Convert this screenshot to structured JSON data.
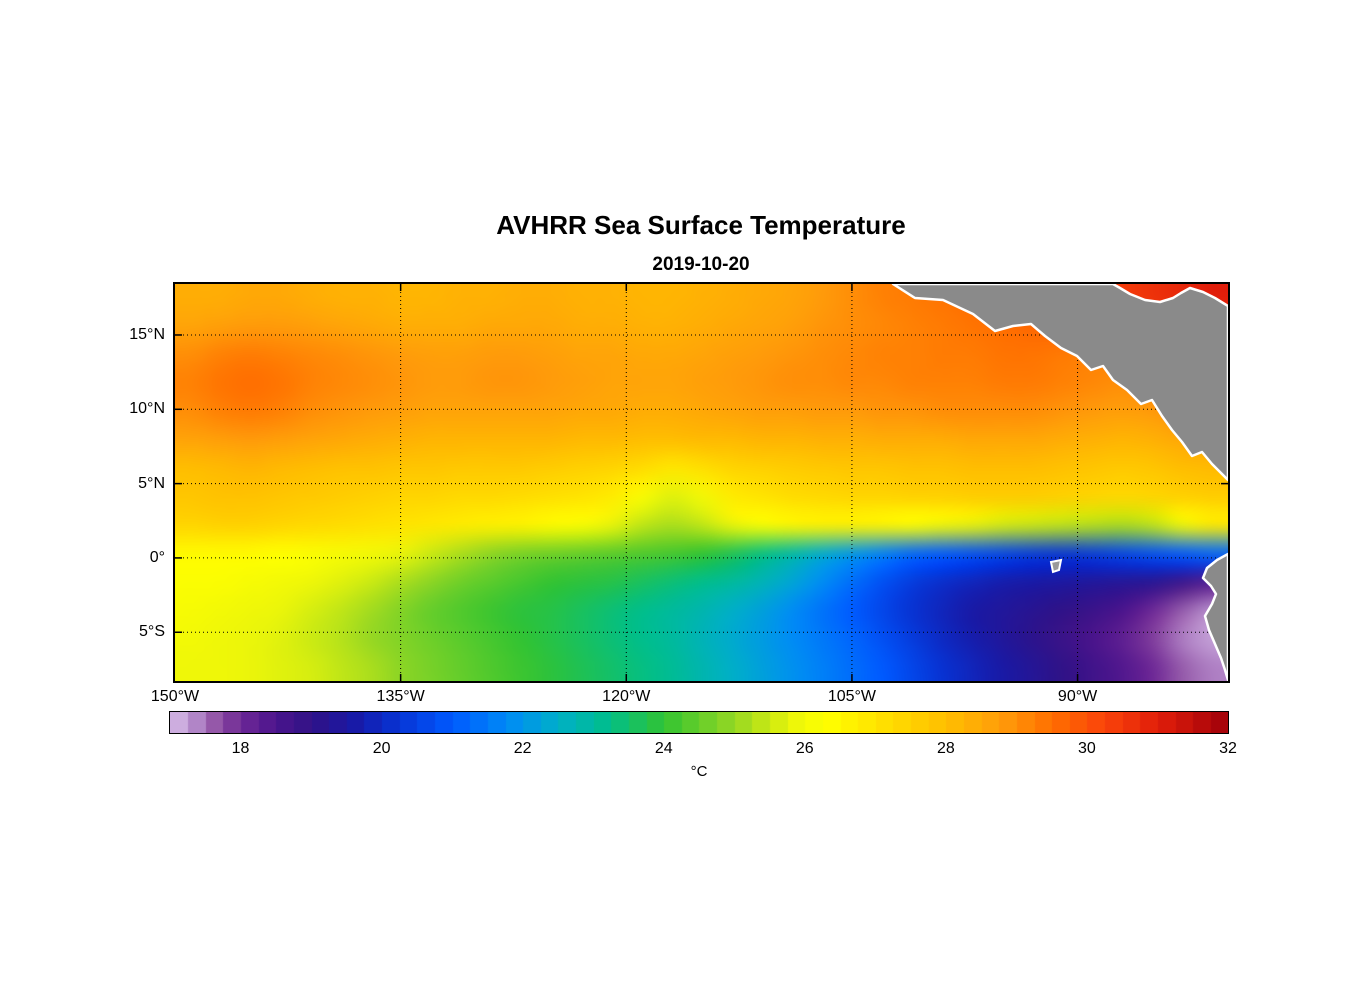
{
  "title": "AVHRR Sea Surface Temperature",
  "subtitle": "2019-10-20",
  "colorbar": {
    "label": "°C",
    "min": 17,
    "max": 32,
    "segments": 60,
    "ticks": [
      {
        "label": "18",
        "value": 18
      },
      {
        "label": "20",
        "value": 20
      },
      {
        "label": "22",
        "value": 22
      },
      {
        "label": "24",
        "value": 24
      },
      {
        "label": "26",
        "value": 26
      },
      {
        "label": "28",
        "value": 28
      },
      {
        "label": "30",
        "value": 30
      },
      {
        "label": "32",
        "value": 32
      }
    ]
  },
  "axes": {
    "lon_range": [
      -150,
      -80
    ],
    "lat_range": [
      -8.28,
      18.43
    ],
    "x_ticks": [
      {
        "label": "150°W",
        "lon": -150
      },
      {
        "label": "135°W",
        "lon": -135
      },
      {
        "label": "120°W",
        "lon": -120
      },
      {
        "label": "105°W",
        "lon": -105
      },
      {
        "label": "90°W",
        "lon": -90
      }
    ],
    "y_ticks": [
      {
        "label": "15°N",
        "lat": 15
      },
      {
        "label": "10°N",
        "lat": 10
      },
      {
        "label": "5°N",
        "lat": 5
      },
      {
        "label": "0°",
        "lat": 0
      },
      {
        "label": "5°S",
        "lat": -5
      }
    ]
  },
  "chart_data": {
    "type": "heatmap",
    "title": "AVHRR Sea Surface Temperature",
    "date": "2019-10-20",
    "units": "°C",
    "land_color": "#8A8A8A",
    "coast_color": "#ffffff",
    "x_lon": [
      -149,
      -147,
      -145,
      -143,
      -141,
      -139,
      -137,
      -135,
      -133,
      -131,
      -129,
      -127,
      -125,
      -123,
      -121,
      -119,
      -117,
      -115,
      -113,
      -111,
      -109,
      -107,
      -105,
      -103,
      -101,
      -99,
      -97,
      -95,
      -93,
      -91,
      -89,
      -87,
      -85,
      -83,
      -81
    ],
    "y_lat": [
      17.5,
      15.5,
      13.5,
      11.5,
      9.5,
      7.5,
      5.5,
      3.5,
      1.5,
      -0.5,
      -2.5,
      -4.5,
      -6.5,
      -8.5
    ],
    "values": [
      [
        28.4,
        28.4,
        28.5,
        28.5,
        28.4,
        28.3,
        28.3,
        28.2,
        28.2,
        28.3,
        28.3,
        28.4,
        28.4,
        28.3,
        28.3,
        28.2,
        28.2,
        28.3,
        28.4,
        28.5,
        28.6,
        28.8,
        29.0,
        29.2,
        29.3,
        29.4,
        29.5,
        29.6,
        29.8,
        30.0,
        30.2,
        30.4,
        30.6,
        30.8,
        31.0
      ],
      [
        28.6,
        28.7,
        28.8,
        28.8,
        28.7,
        28.6,
        28.5,
        28.4,
        28.4,
        28.4,
        28.5,
        28.5,
        28.5,
        28.4,
        28.4,
        28.3,
        28.3,
        28.4,
        28.5,
        28.6,
        28.7,
        28.9,
        29.0,
        29.1,
        29.2,
        29.3,
        29.4,
        29.5,
        29.6,
        29.7,
        29.8,
        30.0,
        30.2,
        30.4,
        30.5
      ],
      [
        29.0,
        29.2,
        29.3,
        29.2,
        29.1,
        29.0,
        28.9,
        28.8,
        28.7,
        28.7,
        28.8,
        28.8,
        28.7,
        28.6,
        28.6,
        28.5,
        28.5,
        28.6,
        28.7,
        28.8,
        28.9,
        29.0,
        29.1,
        29.2,
        29.2,
        29.3,
        29.3,
        29.4,
        29.4,
        29.3,
        29.2,
        29.3,
        29.5,
        29.6,
        29.7
      ],
      [
        29.2,
        29.4,
        29.5,
        29.4,
        29.2,
        29.1,
        29.0,
        28.9,
        28.8,
        28.8,
        28.9,
        28.9,
        28.8,
        28.7,
        28.6,
        28.6,
        28.6,
        28.7,
        28.8,
        28.9,
        29.0,
        29.0,
        29.1,
        29.1,
        29.2,
        29.2,
        29.2,
        29.3,
        29.3,
        29.2,
        29.1,
        29.0,
        29.2,
        29.4,
        29.5
      ],
      [
        29.0,
        29.2,
        29.3,
        29.2,
        29.0,
        28.9,
        28.8,
        28.7,
        28.6,
        28.6,
        28.6,
        28.6,
        28.6,
        28.5,
        28.5,
        28.4,
        28.4,
        28.5,
        28.6,
        28.7,
        28.7,
        28.8,
        28.8,
        28.9,
        28.9,
        29.0,
        29.0,
        29.0,
        29.0,
        28.9,
        28.8,
        28.7,
        28.8,
        29.0,
        29.1
      ],
      [
        28.6,
        28.7,
        28.8,
        28.7,
        28.6,
        28.5,
        28.4,
        28.3,
        28.2,
        28.2,
        28.2,
        28.2,
        28.2,
        28.1,
        28.1,
        28.0,
        28.0,
        28.1,
        28.1,
        28.2,
        28.2,
        28.3,
        28.3,
        28.4,
        28.4,
        28.4,
        28.5,
        28.5,
        28.5,
        28.4,
        28.3,
        28.2,
        28.3,
        28.5,
        28.6
      ],
      [
        28.0,
        28.1,
        28.2,
        28.1,
        28.0,
        27.9,
        27.9,
        27.8,
        27.8,
        27.7,
        27.7,
        27.7,
        27.6,
        27.5,
        27.4,
        27.2,
        26.9,
        27.1,
        27.4,
        27.5,
        27.6,
        27.7,
        27.8,
        27.8,
        27.9,
        27.9,
        28.0,
        28.0,
        28.0,
        27.9,
        27.8,
        27.7,
        27.8,
        28.0,
        28.1
      ],
      [
        27.8,
        27.9,
        27.9,
        27.8,
        27.7,
        27.6,
        27.5,
        27.4,
        27.4,
        27.3,
        27.3,
        27.2,
        27.1,
        27.0,
        26.8,
        26.2,
        25.7,
        26.0,
        26.8,
        27.0,
        27.2,
        27.3,
        27.4,
        27.4,
        27.5,
        27.5,
        27.6,
        27.6,
        27.6,
        27.5,
        27.4,
        27.3,
        27.4,
        27.5,
        27.6
      ],
      [
        27.4,
        27.5,
        27.5,
        27.4,
        27.3,
        27.2,
        27.1,
        27.0,
        26.9,
        26.8,
        26.7,
        26.6,
        26.4,
        26.2,
        25.8,
        25.4,
        25.2,
        25.4,
        25.8,
        26.2,
        26.5,
        26.6,
        26.6,
        26.5,
        26.3,
        26.0,
        25.8,
        25.6,
        25.5,
        25.4,
        25.3,
        25.2,
        25.4,
        26.0,
        26.8
      ],
      [
        26.4,
        26.4,
        26.4,
        26.3,
        26.2,
        26.1,
        26.0,
        25.8,
        25.5,
        25.2,
        24.9,
        24.7,
        24.6,
        24.5,
        24.4,
        24.3,
        24.2,
        24.0,
        23.7,
        23.3,
        22.9,
        22.4,
        22.0,
        21.6,
        21.2,
        21.0,
        20.8,
        20.6,
        20.4,
        20.3,
        20.4,
        20.6,
        20.8,
        21.0,
        21.2
      ],
      [
        26.2,
        26.2,
        26.1,
        26.0,
        25.9,
        25.7,
        25.5,
        25.2,
        24.9,
        24.6,
        24.4,
        24.2,
        24.0,
        23.9,
        23.8,
        23.6,
        23.4,
        23.2,
        23.0,
        22.7,
        22.3,
        21.8,
        21.3,
        20.8,
        20.4,
        20.1,
        19.9,
        19.7,
        19.6,
        19.5,
        19.4,
        19.3,
        19.2,
        18.8,
        18.4
      ],
      [
        26.1,
        26.0,
        25.9,
        25.8,
        25.6,
        25.4,
        25.1,
        24.8,
        24.5,
        24.3,
        24.1,
        23.9,
        23.8,
        23.6,
        23.4,
        23.2,
        23.0,
        22.8,
        22.5,
        22.2,
        21.8,
        21.4,
        21.0,
        20.6,
        20.2,
        19.9,
        19.6,
        19.4,
        19.2,
        19.0,
        18.8,
        18.5,
        18.0,
        17.6,
        17.3
      ],
      [
        26.0,
        25.9,
        25.8,
        25.7,
        25.5,
        25.3,
        25.0,
        24.8,
        24.6,
        24.4,
        24.2,
        24.0,
        23.8,
        23.6,
        23.4,
        23.2,
        23.0,
        22.7,
        22.4,
        22.1,
        21.8,
        21.5,
        21.2,
        20.8,
        20.4,
        20.0,
        19.7,
        19.4,
        19.1,
        18.8,
        18.5,
        18.2,
        17.8,
        17.4,
        17.2
      ],
      [
        25.9,
        25.9,
        25.8,
        25.7,
        25.6,
        25.4,
        25.2,
        24.9,
        24.7,
        24.5,
        24.3,
        24.1,
        23.9,
        23.7,
        23.5,
        23.3,
        23.1,
        22.8,
        22.5,
        22.2,
        21.9,
        21.6,
        21.3,
        21.0,
        20.6,
        20.2,
        19.9,
        19.6,
        19.3,
        19.0,
        18.7,
        18.4,
        18.0,
        17.6,
        17.4
      ]
    ],
    "colormap_stops": [
      {
        "t": 17.0,
        "rgb": [
          218,
          193,
          234
        ]
      },
      {
        "t": 17.3,
        "rgb": [
          186,
          146,
          208
        ]
      },
      {
        "t": 17.7,
        "rgb": [
          140,
          75,
          160
        ]
      },
      {
        "t": 18.0,
        "rgb": [
          110,
          40,
          150
        ]
      },
      {
        "t": 18.5,
        "rgb": [
          75,
          20,
          140
        ]
      },
      {
        "t": 19.0,
        "rgb": [
          48,
          18,
          135
        ]
      },
      {
        "t": 19.6,
        "rgb": [
          25,
          25,
          165
        ]
      },
      {
        "t": 20.2,
        "rgb": [
          8,
          50,
          210
        ]
      },
      {
        "t": 21.0,
        "rgb": [
          0,
          90,
          255
        ]
      },
      {
        "t": 21.8,
        "rgb": [
          0,
          140,
          245
        ]
      },
      {
        "t": 22.5,
        "rgb": [
          0,
          175,
          200
        ]
      },
      {
        "t": 23.2,
        "rgb": [
          0,
          190,
          140
        ]
      },
      {
        "t": 24.0,
        "rgb": [
          50,
          195,
          50
        ]
      },
      {
        "t": 25.0,
        "rgb": [
          150,
          215,
          35
        ]
      },
      {
        "t": 25.8,
        "rgb": [
          235,
          245,
          10
        ]
      },
      {
        "t": 26.3,
        "rgb": [
          255,
          255,
          0
        ]
      },
      {
        "t": 27.0,
        "rgb": [
          255,
          228,
          0
        ]
      },
      {
        "t": 28.0,
        "rgb": [
          255,
          190,
          0
        ]
      },
      {
        "t": 28.8,
        "rgb": [
          255,
          155,
          10
        ]
      },
      {
        "t": 29.5,
        "rgb": [
          255,
          110,
          0
        ]
      },
      {
        "t": 30.2,
        "rgb": [
          250,
          70,
          10
        ]
      },
      {
        "t": 31.0,
        "rgb": [
          225,
          30,
          10
        ]
      },
      {
        "t": 32.0,
        "rgb": [
          160,
          0,
          10
        ]
      }
    ]
  }
}
